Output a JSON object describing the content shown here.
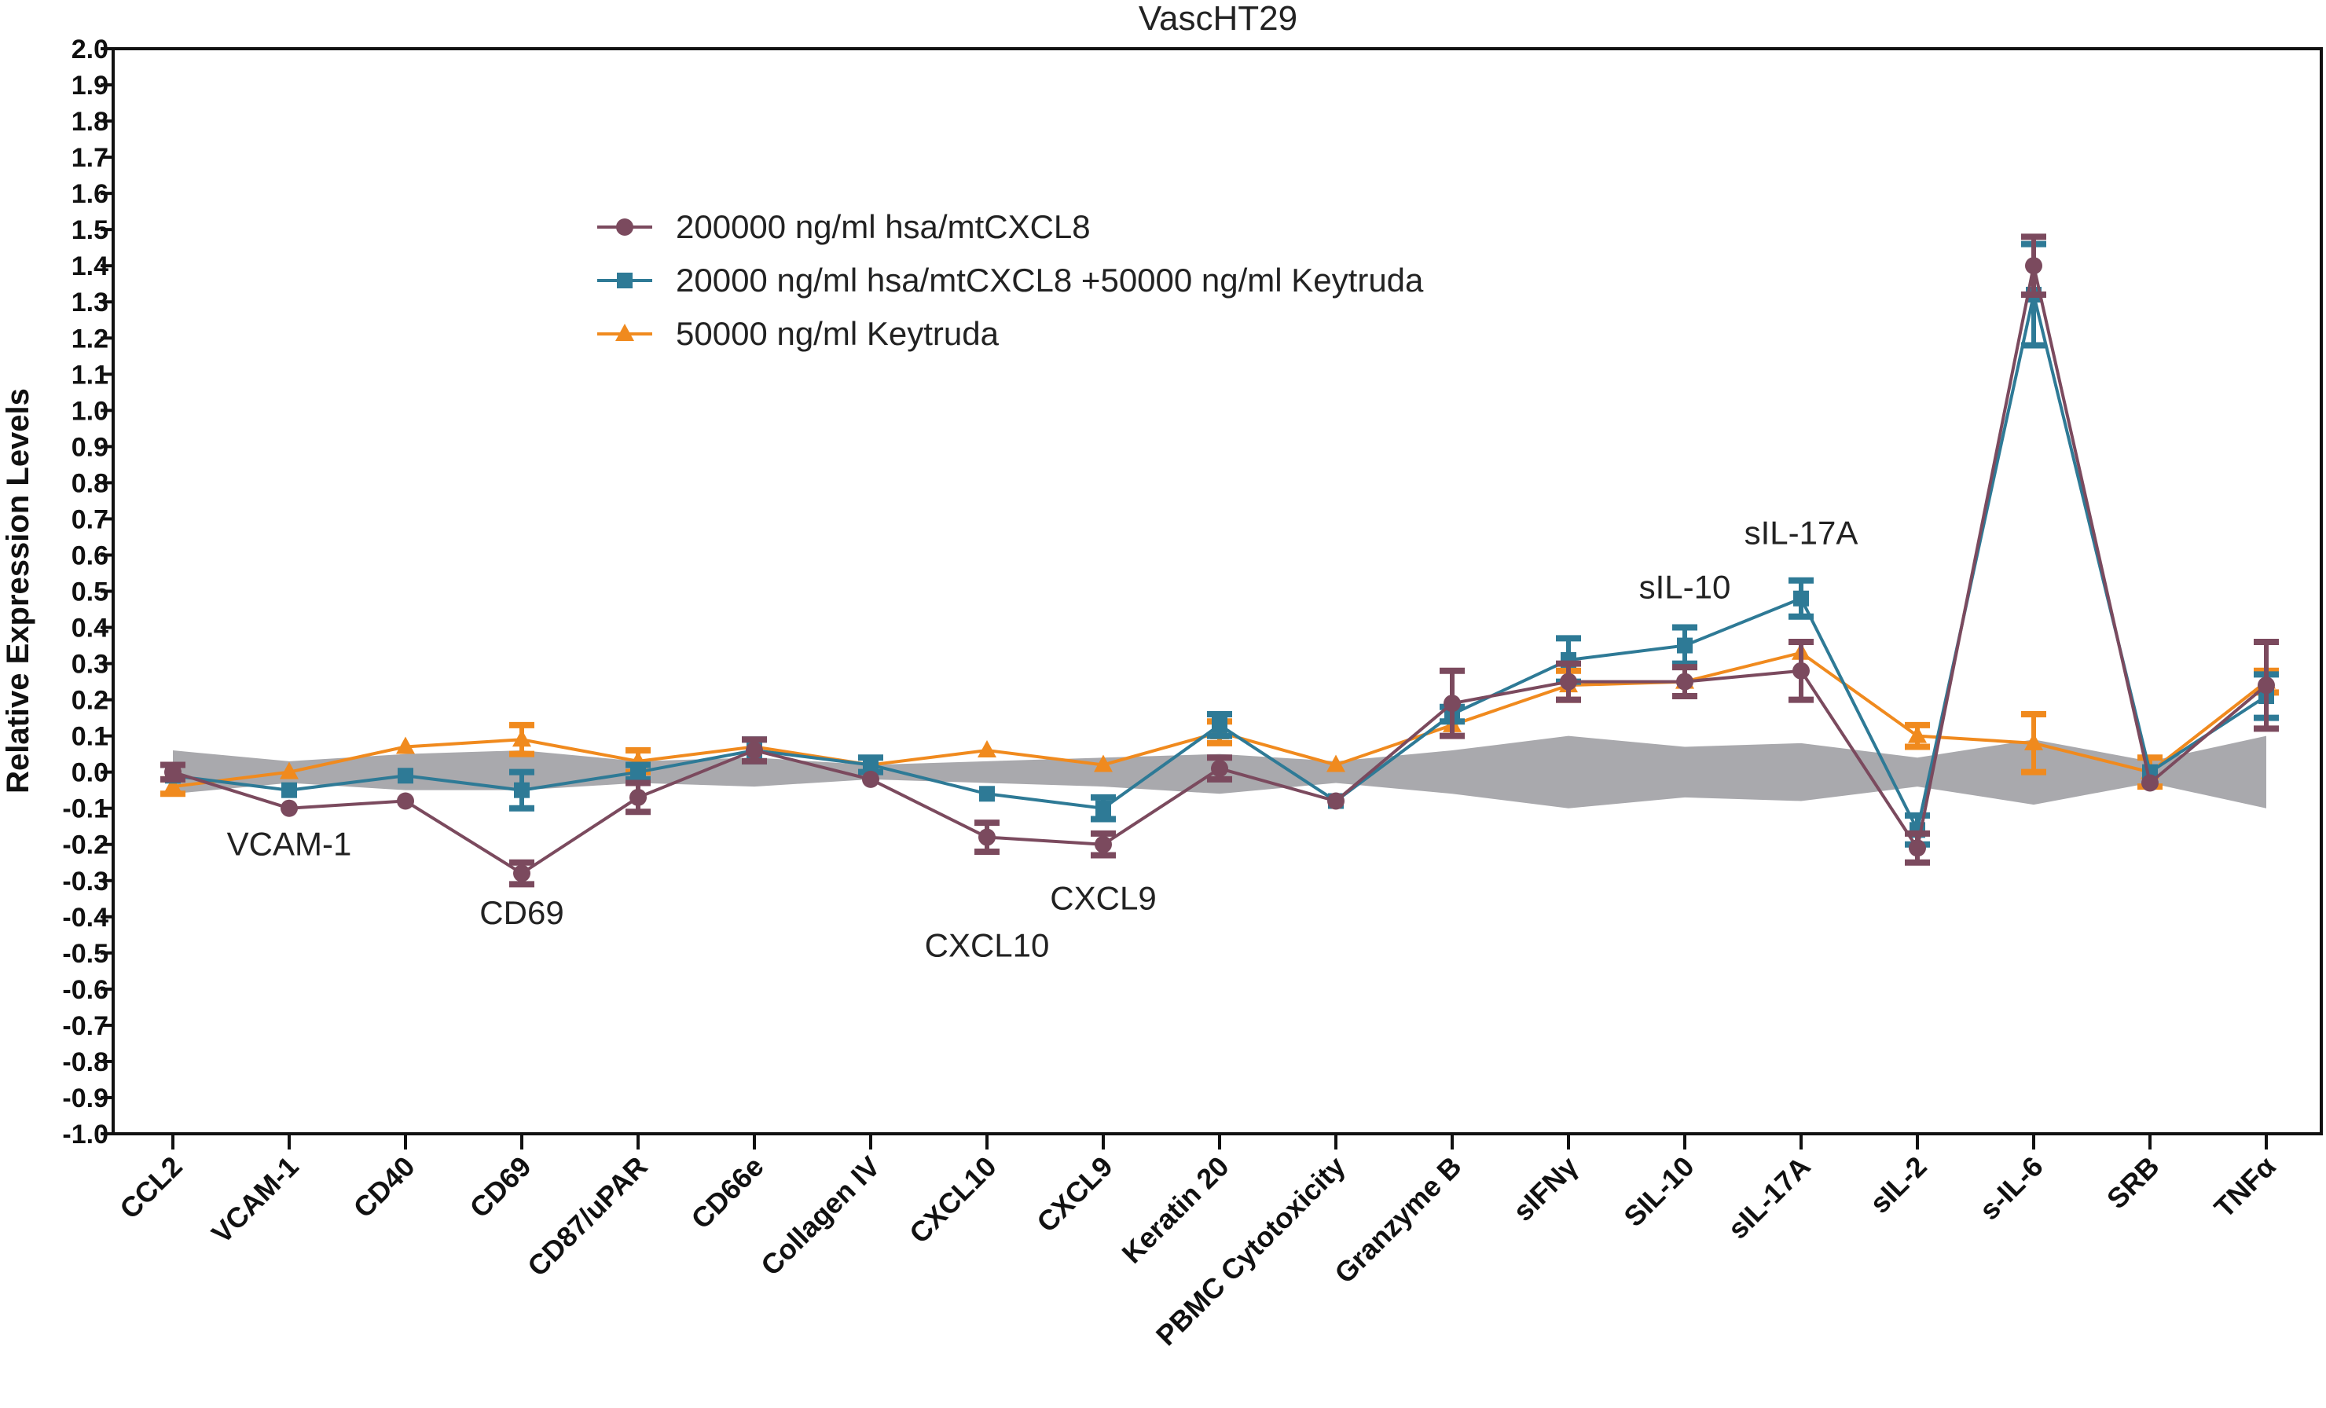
{
  "chart_data": {
    "type": "line",
    "title": "VascHT29",
    "xlabel": "",
    "ylabel": "Relative Expression Levels",
    "ylim": [
      -1.0,
      2.0
    ],
    "ytick_step": 0.1,
    "ytick_labels": [
      "-1.0",
      "-0.9",
      "-0.8",
      "-0.7",
      "-0.6",
      "-0.5",
      "-0.4",
      "-0.3",
      "-0.2",
      "-0.1",
      "0.0",
      "0.1",
      "0.2",
      "0.3",
      "0.4",
      "0.5",
      "0.6",
      "0.7",
      "0.8",
      "0.9",
      "1.0",
      "1.1",
      "1.2",
      "1.3",
      "1.4",
      "1.5",
      "1.6",
      "1.7",
      "1.8",
      "1.9",
      "2.0"
    ],
    "categories": [
      "CCL2",
      "VCAM-1",
      "CD40",
      "CD69",
      "CD87/uPAR",
      "CD66e",
      "Collagen IV",
      "CXCL10",
      "CXCL9",
      "Keratin 20",
      "PBMC Cytotoxicity",
      "Granzyme B",
      "sIFNγ",
      "SIL-10",
      "sIL-17A",
      "sIL-2",
      "s-IL-6",
      "SRB",
      "TNFα"
    ],
    "band": {
      "upper": [
        0.06,
        0.03,
        0.05,
        0.06,
        0.03,
        0.04,
        0.02,
        0.03,
        0.04,
        0.05,
        0.03,
        0.06,
        0.1,
        0.07,
        0.08,
        0.04,
        0.09,
        0.03,
        0.1
      ],
      "lower": [
        -0.06,
        -0.03,
        -0.05,
        -0.05,
        -0.03,
        -0.04,
        -0.02,
        -0.03,
        -0.04,
        -0.06,
        -0.03,
        -0.06,
        -0.1,
        -0.07,
        -0.08,
        -0.04,
        -0.09,
        -0.03,
        -0.1
      ]
    },
    "legend_position": "top-left",
    "series": [
      {
        "name": "200000 ng/ml hsa/mtCXCL8",
        "color": "#7b4a5e",
        "marker": "circle",
        "values": [
          0.0,
          -0.1,
          -0.08,
          -0.28,
          -0.07,
          0.06,
          -0.02,
          -0.18,
          -0.2,
          0.01,
          -0.08,
          0.19,
          0.25,
          0.25,
          0.28,
          -0.21,
          1.4,
          -0.03,
          0.24
        ],
        "errors": [
          0.02,
          0,
          0,
          0.03,
          0.04,
          0.03,
          0,
          0.04,
          0.03,
          0.03,
          0,
          0.09,
          0.05,
          0.04,
          0.08,
          0.04,
          0.08,
          0,
          0.12
        ]
      },
      {
        "name": "20000 ng/ml hsa/mtCXCL8 +50000 ng/ml Keytruda",
        "color": "#2e7a96",
        "marker": "square",
        "values": [
          -0.01,
          -0.05,
          -0.01,
          -0.05,
          0.0,
          0.06,
          0.02,
          -0.06,
          -0.1,
          0.13,
          -0.08,
          0.16,
          0.31,
          0.35,
          0.48,
          -0.16,
          1.32,
          0.0,
          0.21
        ],
        "errors": [
          0,
          0,
          0,
          0.05,
          0.02,
          0.03,
          0.02,
          0,
          0.03,
          0.03,
          0,
          0.02,
          0.06,
          0.05,
          0.05,
          0.04,
          0.14,
          0,
          0.06
        ]
      },
      {
        "name": "50000 ng/ml Keytruda",
        "color": "#f08a1e",
        "marker": "triangle",
        "values": [
          -0.04,
          0.0,
          0.07,
          0.09,
          0.03,
          0.07,
          0.02,
          0.06,
          0.02,
          0.11,
          0.02,
          0.13,
          0.24,
          0.25,
          0.33,
          0.1,
          0.08,
          0.0,
          0.25
        ],
        "errors": [
          0.02,
          0,
          0,
          0.04,
          0.03,
          0,
          0,
          0,
          0,
          0.03,
          0,
          0,
          0.04,
          0,
          0,
          0.03,
          0.08,
          0.04,
          0.03
        ]
      }
    ],
    "annotations": [
      {
        "text": "VCAM-1",
        "category": 1,
        "y": -0.23
      },
      {
        "text": "CD69",
        "category": 3,
        "y": -0.42
      },
      {
        "text": "CXCL10",
        "category": 7,
        "y": -0.51
      },
      {
        "text": "CXCL9",
        "category": 8,
        "y": -0.38
      },
      {
        "text": "sIL-10",
        "category": 13,
        "y": 0.48
      },
      {
        "text": "sIL-17A",
        "category": 14,
        "y": 0.63
      }
    ]
  }
}
